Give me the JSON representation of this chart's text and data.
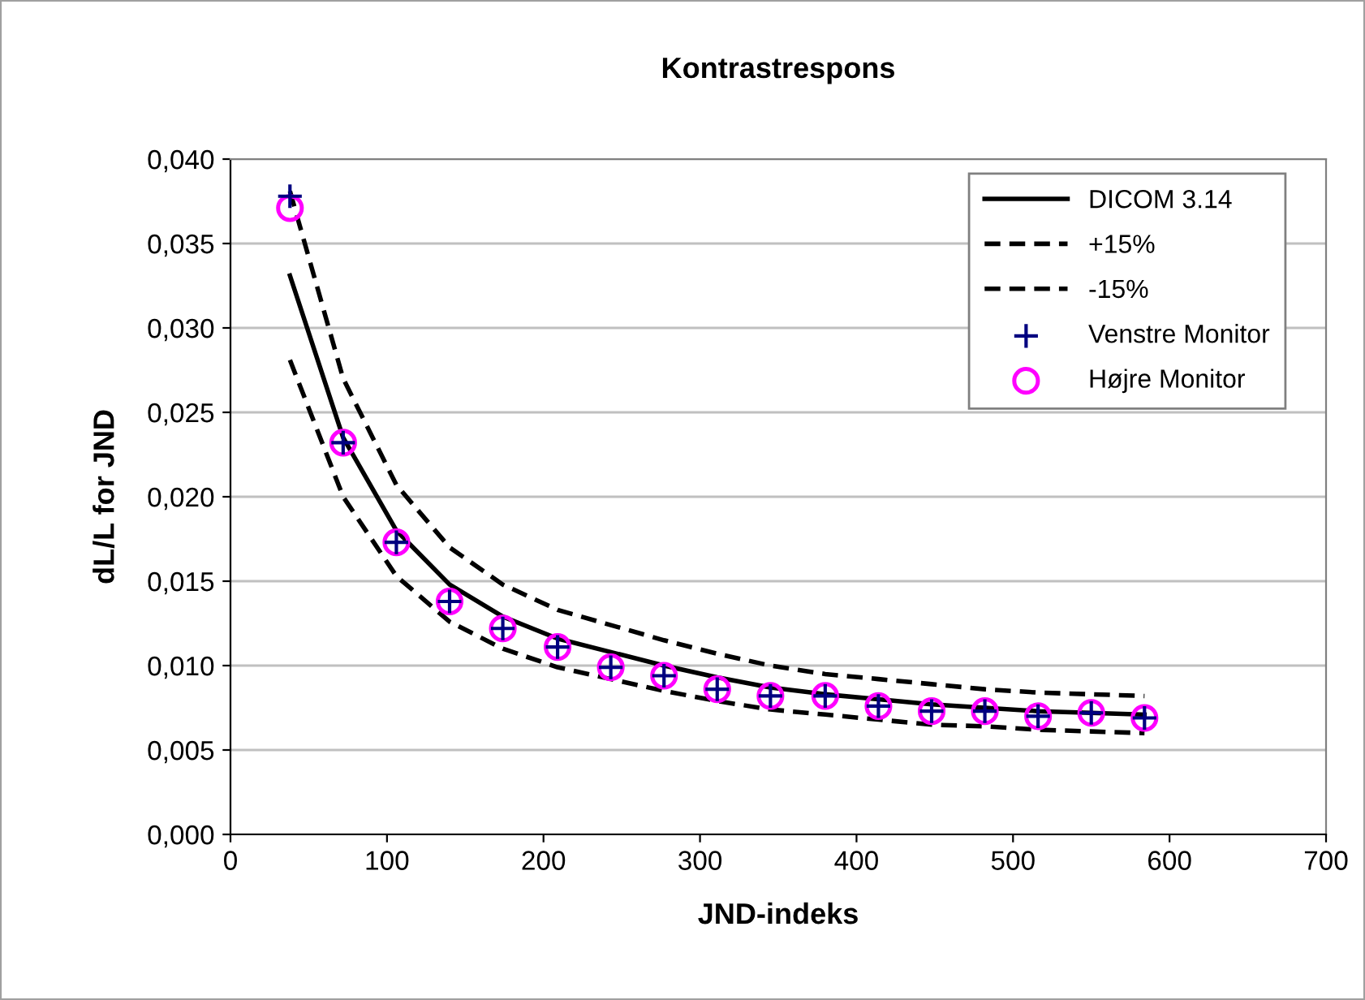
{
  "chart_data": {
    "type": "line",
    "title": "Kontrastrespons",
    "xlabel": "JND-indeks",
    "ylabel": "dL/L for JND",
    "x": [
      38,
      72,
      106,
      140,
      174,
      209,
      243,
      277,
      311,
      345,
      380,
      414,
      448,
      482,
      516,
      550,
      584
    ],
    "xlim": [
      0,
      700
    ],
    "xticks": [
      0,
      100,
      200,
      300,
      400,
      500,
      600,
      700
    ],
    "ylim": [
      0,
      0.04
    ],
    "yticks": [
      {
        "value": 0,
        "label": "0,000"
      },
      {
        "value": 0.005,
        "label": "0,005"
      },
      {
        "value": 0.01,
        "label": "0,010"
      },
      {
        "value": 0.015,
        "label": "0,015"
      },
      {
        "value": 0.02,
        "label": "0,020"
      },
      {
        "value": 0.025,
        "label": "0,025"
      },
      {
        "value": 0.03,
        "label": "0,030"
      },
      {
        "value": 0.035,
        "label": "0,035"
      },
      {
        "value": 0.04,
        "label": "0,040"
      }
    ],
    "grid": "y",
    "legend": "top right",
    "series": [
      {
        "name": "DICOM 3.14",
        "color": "#000000",
        "line_style": "solid",
        "marker": "none",
        "values": [
          0.0331,
          0.0235,
          0.018,
          0.0148,
          0.0129,
          0.0116,
          0.0108,
          0.01,
          0.0093,
          0.0087,
          0.0083,
          0.008,
          0.0077,
          0.0075,
          0.0073,
          0.0072,
          0.0071
        ]
      },
      {
        "name": "+15%",
        "color": "#000000",
        "line_style": "dashed",
        "marker": "none",
        "values": [
          0.0381,
          0.027,
          0.0207,
          0.017,
          0.0148,
          0.0133,
          0.0124,
          0.0115,
          0.0107,
          0.01,
          0.0095,
          0.0092,
          0.0089,
          0.0086,
          0.0084,
          0.0083,
          0.0082
        ]
      },
      {
        "name": "-15%",
        "color": "#000000",
        "line_style": "dashed",
        "marker": "none",
        "values": [
          0.0281,
          0.02,
          0.0153,
          0.0126,
          0.011,
          0.0099,
          0.0092,
          0.0085,
          0.0079,
          0.0074,
          0.0071,
          0.0068,
          0.0065,
          0.0064,
          0.0062,
          0.0061,
          0.006
        ]
      },
      {
        "name": "Venstre Monitor",
        "color": "#000080",
        "type": "scatter",
        "marker": "cross",
        "values": [
          0.0378,
          0.0232,
          0.0173,
          0.0138,
          0.0122,
          0.0111,
          0.0099,
          0.0094,
          0.0086,
          0.0082,
          0.0082,
          0.0076,
          0.0073,
          0.0073,
          0.007,
          0.0072,
          0.0069
        ]
      },
      {
        "name": "Højre Monitor",
        "color": "#ff00ff",
        "type": "scatter",
        "marker": "circle",
        "values": [
          0.0371,
          0.0232,
          0.0173,
          0.0138,
          0.0122,
          0.0111,
          0.0099,
          0.0094,
          0.0086,
          0.0082,
          0.0082,
          0.0076,
          0.0073,
          0.0073,
          0.007,
          0.0072,
          0.0069
        ]
      }
    ]
  }
}
